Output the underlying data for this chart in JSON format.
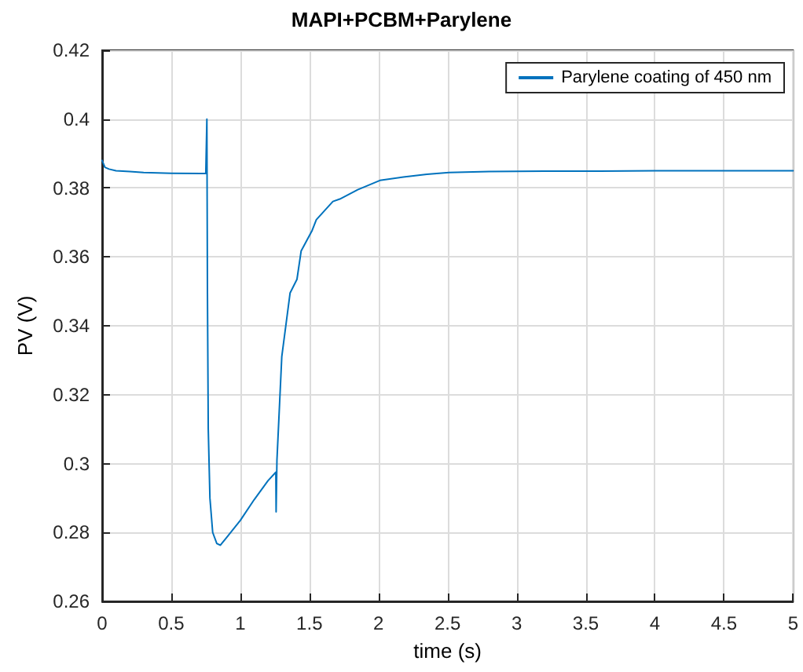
{
  "chart_data": {
    "type": "line",
    "title": "MAPI+PCBM+Parylene",
    "xlabel": "time (s)",
    "ylabel": "PV (V)",
    "x": [
      0,
      0.02,
      0.05,
      0.1,
      0.2,
      0.3,
      0.5,
      0.75,
      0.757,
      0.758,
      0.762,
      0.768,
      0.78,
      0.8,
      0.83,
      0.856,
      0.9,
      1.0,
      1.1,
      1.2,
      1.257,
      1.259,
      1.265,
      1.3,
      1.36,
      1.41,
      1.44,
      1.52,
      1.55,
      1.67,
      1.72,
      1.85,
      2.01,
      2.18,
      2.35,
      2.51,
      2.8,
      3.2,
      3.6,
      4.0,
      4.5,
      5.0
    ],
    "series": [
      {
        "name": "Parylene coating of 450 nm",
        "color": "#0072bd",
        "values": [
          0.388,
          0.386,
          0.3855,
          0.385,
          0.3848,
          0.3845,
          0.3843,
          0.3842,
          0.3842,
          0.4,
          0.35,
          0.31,
          0.29,
          0.28,
          0.2768,
          0.2763,
          0.2785,
          0.2835,
          0.2895,
          0.295,
          0.2975,
          0.286,
          0.301,
          0.331,
          0.3495,
          0.3535,
          0.3617,
          0.3677,
          0.3708,
          0.3761,
          0.3768,
          0.3795,
          0.3822,
          0.3832,
          0.384,
          0.3845,
          0.3848,
          0.3849,
          0.3849,
          0.385,
          0.385,
          0.385
        ]
      }
    ],
    "xlim": [
      0,
      5
    ],
    "xticks": [
      0,
      0.5,
      1,
      1.5,
      2,
      2.5,
      3,
      3.5,
      4,
      4.5,
      5
    ],
    "ylim": [
      0.26,
      0.42
    ],
    "yticks": [
      0.26,
      0.28,
      0.3,
      0.32,
      0.34,
      0.36,
      0.38,
      0.4,
      0.42
    ],
    "grid": true,
    "legend": "top right",
    "marker": "none",
    "line_style": "solid"
  }
}
